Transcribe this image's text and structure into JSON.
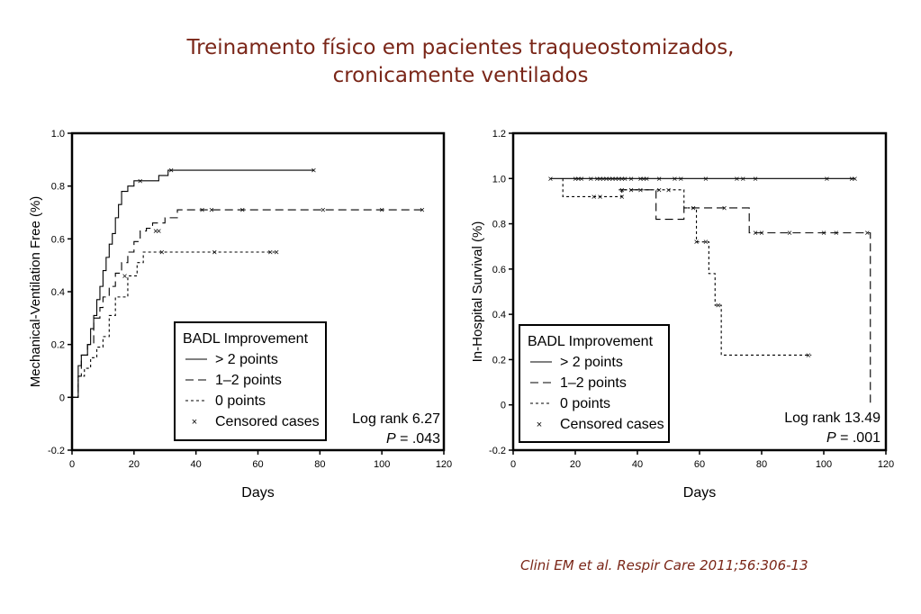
{
  "slide": {
    "title_line1": "Treinamento físico em pacientes traqueostomizados,",
    "title_line2": "cronicamente ventilados",
    "citation": "Clini EM et al. Respir Care 2011;56:306-13"
  },
  "chart_data": [
    {
      "type": "line",
      "subtype": "kaplan-meier step curves",
      "xlabel": "Days",
      "ylabel": "Mechanical-Ventilation Free (%)",
      "xlim": [
        0,
        120
      ],
      "ylim": [
        -0.2,
        1.0
      ],
      "xticks": [
        "0",
        "20",
        "40",
        "60",
        "80",
        "100",
        "120"
      ],
      "yticks": [
        "-0.2",
        "0",
        "0.2",
        "0.4",
        "0.6",
        "0.8",
        "1.0"
      ],
      "grid": false,
      "legend": {
        "title": "BADL Improvement",
        "placement": "bottom-center",
        "entries": [
          "> 2 points",
          "1–2 points",
          "0 points",
          "Censored cases"
        ]
      },
      "annotation": {
        "line1": "Log rank 6.27",
        "p_label": "P",
        "p_value": " = .043"
      },
      "series": [
        {
          "name": "> 2 points",
          "dash": "solid",
          "x": [
            0,
            2,
            2,
            3,
            5,
            6,
            7,
            8,
            9,
            10,
            11,
            12,
            13,
            14,
            15,
            16,
            18,
            20,
            22,
            28,
            31,
            78
          ],
          "y": [
            0,
            0.08,
            0.12,
            0.16,
            0.2,
            0.26,
            0.31,
            0.37,
            0.42,
            0.48,
            0.53,
            0.58,
            0.62,
            0.68,
            0.73,
            0.78,
            0.8,
            0.82,
            0.82,
            0.84,
            0.86,
            0.86
          ],
          "censored": [
            [
              22,
              0.82
            ],
            [
              32,
              0.86
            ],
            [
              78,
              0.86
            ]
          ]
        },
        {
          "name": "1–2 points",
          "dash": "dashed",
          "x": [
            0,
            2,
            3,
            5,
            7,
            9,
            10,
            12,
            14,
            16,
            18,
            20,
            22,
            24,
            26,
            30,
            34,
            37,
            113
          ],
          "y": [
            0,
            0.08,
            0.16,
            0.2,
            0.3,
            0.34,
            0.38,
            0.42,
            0.47,
            0.51,
            0.55,
            0.59,
            0.63,
            0.64,
            0.66,
            0.68,
            0.71,
            0.71,
            0.71
          ],
          "censored": [
            [
              27,
              0.63
            ],
            [
              28,
              0.63
            ],
            [
              42,
              0.71
            ],
            [
              45,
              0.71
            ],
            [
              55,
              0.71
            ],
            [
              81,
              0.71
            ],
            [
              100,
              0.71
            ],
            [
              113,
              0.71
            ]
          ]
        },
        {
          "name": "0 points",
          "dash": "dotted",
          "x": [
            0,
            2,
            4,
            6,
            8,
            10,
            12,
            14,
            18,
            21,
            23,
            66
          ],
          "y": [
            0,
            0.08,
            0.11,
            0.15,
            0.19,
            0.23,
            0.31,
            0.38,
            0.46,
            0.51,
            0.55,
            0.55
          ],
          "censored": [
            [
              17,
              0.46
            ],
            [
              29,
              0.55
            ],
            [
              46,
              0.55
            ],
            [
              64,
              0.55
            ],
            [
              66,
              0.55
            ]
          ]
        }
      ]
    },
    {
      "type": "line",
      "subtype": "kaplan-meier step curves",
      "xlabel": "Days",
      "ylabel": "In-Hospital Survival (%)",
      "xlim": [
        0,
        120
      ],
      "ylim": [
        -0.2,
        1.2
      ],
      "xticks": [
        "0",
        "20",
        "40",
        "60",
        "80",
        "100",
        "120"
      ],
      "yticks": [
        "-0.2",
        "0",
        "0.2",
        "0.4",
        "0.6",
        "0.8",
        "1.0",
        "1.2"
      ],
      "grid": false,
      "legend": {
        "title": "BADL Improvement",
        "placement": "bottom-center",
        "entries": [
          "> 2 points",
          "1–2 points",
          "0 points",
          "Censored cases"
        ]
      },
      "annotation": {
        "line1": "Log rank 13.49",
        "p_label": "P",
        "p_value": " = .001"
      },
      "series": [
        {
          "name": "> 2 points",
          "dash": "solid",
          "x": [
            12,
            110
          ],
          "y": [
            1.0,
            1.0
          ],
          "censored": [
            [
              12,
              1.0
            ],
            [
              20,
              1.0
            ],
            [
              21,
              1.0
            ],
            [
              22,
              1.0
            ],
            [
              25,
              1.0
            ],
            [
              27,
              1.0
            ],
            [
              28,
              1.0
            ],
            [
              29,
              1.0
            ],
            [
              30,
              1.0
            ],
            [
              31,
              1.0
            ],
            [
              32,
              1.0
            ],
            [
              33,
              1.0
            ],
            [
              34,
              1.0
            ],
            [
              35,
              1.0
            ],
            [
              36,
              1.0
            ],
            [
              38,
              1.0
            ],
            [
              41,
              1.0
            ],
            [
              42,
              1.0
            ],
            [
              43,
              1.0
            ],
            [
              47,
              1.0
            ],
            [
              52,
              1.0
            ],
            [
              54,
              1.0
            ],
            [
              62,
              1.0
            ],
            [
              72,
              1.0
            ],
            [
              74,
              1.0
            ],
            [
              78,
              1.0
            ],
            [
              101,
              1.0
            ],
            [
              109,
              1.0
            ],
            [
              110,
              1.0
            ]
          ]
        },
        {
          "name": "1–2 points",
          "dash": "dashed",
          "x": [
            34,
            46,
            46,
            55,
            55,
            76,
            76,
            115,
            115
          ],
          "y": [
            0.95,
            0.95,
            0.82,
            0.82,
            0.87,
            0.87,
            0.76,
            0.76,
            0.0
          ],
          "censored": [
            [
              35,
              0.95
            ],
            [
              38,
              0.95
            ],
            [
              41,
              0.95
            ],
            [
              47,
              0.95
            ],
            [
              50,
              0.95
            ],
            [
              58,
              0.87
            ],
            [
              68,
              0.87
            ],
            [
              78,
              0.76
            ],
            [
              80,
              0.76
            ],
            [
              89,
              0.76
            ],
            [
              100,
              0.76
            ],
            [
              104,
              0.76
            ],
            [
              114,
              0.76
            ]
          ]
        },
        {
          "name": "0 points",
          "dash": "dotted",
          "x": [
            16,
            16,
            35,
            35,
            55,
            55,
            59,
            59,
            63,
            63,
            65,
            65,
            67,
            67,
            96
          ],
          "y": [
            1.0,
            0.92,
            0.92,
            0.95,
            0.95,
            0.87,
            0.87,
            0.72,
            0.72,
            0.58,
            0.58,
            0.44,
            0.44,
            0.22,
            0.22
          ],
          "censored": [
            [
              26,
              0.92
            ],
            [
              28,
              0.92
            ],
            [
              35,
              0.92
            ],
            [
              59,
              0.72
            ],
            [
              62,
              0.72
            ],
            [
              66,
              0.44
            ],
            [
              95,
              0.22
            ]
          ]
        }
      ]
    }
  ]
}
